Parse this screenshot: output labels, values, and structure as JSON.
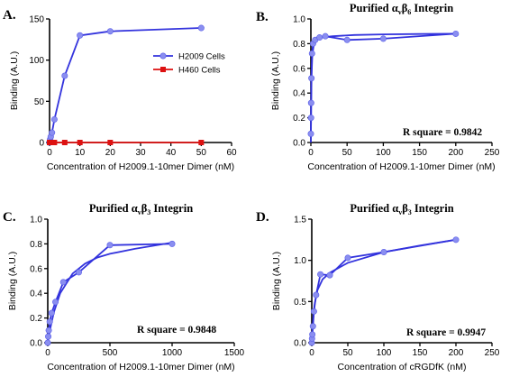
{
  "colors": {
    "blue": "#3333dd",
    "blue_marker": "#8a8ef0",
    "red": "#dd1111",
    "axis": "#000000"
  },
  "chart_data": [
    {
      "panel": "A.",
      "type": "line",
      "title": "",
      "xlabel": "Concentration of H2009.1-10mer Dimer (nM)",
      "ylabel": "Binding (A.U.)",
      "xlim": [
        0,
        60
      ],
      "ylim": [
        0,
        150
      ],
      "xticks": [
        0,
        10,
        20,
        30,
        40,
        50,
        60
      ],
      "yticks": [
        0,
        50,
        100,
        150
      ],
      "legend_position": "upper-right",
      "series": [
        {
          "name": "H2009 Cells",
          "color": "#3333dd",
          "marker": "circle",
          "x": [
            0,
            0.1,
            0.2,
            0.4,
            0.8,
            1.6,
            5,
            10,
            20,
            50
          ],
          "y": [
            0,
            2,
            4,
            7,
            12,
            28,
            81,
            130,
            135,
            139
          ]
        },
        {
          "name": "H460 Cells",
          "color": "#dd1111",
          "marker": "square",
          "x": [
            0,
            0.1,
            0.2,
            0.4,
            0.8,
            1.6,
            5,
            10,
            20,
            50
          ],
          "y": [
            0,
            0,
            0,
            0,
            0,
            0,
            0,
            0,
            0,
            0
          ]
        }
      ]
    },
    {
      "panel": "B.",
      "type": "line",
      "title": "Purified αvβ6 Integrin",
      "title_parts": {
        "pre": "Purified α",
        "sub1": "v",
        "mid": "β",
        "sub2": "6",
        "post": " Integrin"
      },
      "xlabel": "Concentration of H2009.1-10mer Dimer (nM)",
      "ylabel": "Binding (A.U.)",
      "xlim": [
        0,
        250
      ],
      "ylim": [
        0,
        1.0
      ],
      "xticks": [
        0,
        50,
        100,
        150,
        200,
        250
      ],
      "yticks": [
        0,
        0.2,
        0.4,
        0.6,
        0.8,
        1.0
      ],
      "ytick_labels": [
        "0.0",
        "0.2",
        "0.4",
        "0.6",
        "0.8",
        "1.0"
      ],
      "annotation": "R square = 0.9842",
      "series": [
        {
          "name": "",
          "color": "#3333dd",
          "marker": "circle",
          "x": [
            0,
            0.2,
            0.4,
            0.8,
            1.6,
            3,
            6,
            12,
            20,
            50,
            100,
            200
          ],
          "y": [
            0.07,
            0.2,
            0.32,
            0.52,
            0.72,
            0.8,
            0.83,
            0.85,
            0.86,
            0.83,
            0.84,
            0.88
          ]
        }
      ],
      "fit": {
        "x": [
          0,
          0.4,
          1,
          2,
          4,
          8,
          15,
          30,
          60,
          100,
          150,
          200
        ],
        "y": [
          0,
          0.3,
          0.55,
          0.71,
          0.79,
          0.83,
          0.85,
          0.86,
          0.87,
          0.875,
          0.878,
          0.88
        ]
      }
    },
    {
      "panel": "C.",
      "type": "line",
      "title": "Purified αvβ3 Integrin",
      "title_parts": {
        "pre": "Purified α",
        "sub1": "v",
        "mid": "β",
        "sub2": "3",
        "post": " Integrin"
      },
      "xlabel": "Concentration of H2009.1-10mer Dimer (nM)",
      "ylabel": "Binding (A.U.)",
      "xlim": [
        0,
        1500
      ],
      "ylim": [
        0,
        1.0
      ],
      "xticks": [
        0,
        500,
        1000,
        1500
      ],
      "yticks": [
        0,
        0.2,
        0.4,
        0.6,
        0.8,
        1.0
      ],
      "ytick_labels": [
        "0.0",
        "0.2",
        "0.4",
        "0.6",
        "0.8",
        "1.0"
      ],
      "annotation": "R square = 0.9848",
      "series": [
        {
          "name": "",
          "color": "#3333dd",
          "marker": "circle",
          "x": [
            0,
            4,
            8,
            16,
            31,
            62,
            125,
            250,
            500,
            1000
          ],
          "y": [
            0,
            0.05,
            0.1,
            0.17,
            0.24,
            0.33,
            0.49,
            0.57,
            0.79,
            0.8
          ]
        }
      ],
      "fit": {
        "x": [
          0,
          10,
          25,
          50,
          100,
          200,
          300,
          400,
          500,
          700,
          1000
        ],
        "y": [
          0,
          0.06,
          0.14,
          0.25,
          0.4,
          0.56,
          0.64,
          0.69,
          0.72,
          0.76,
          0.81
        ]
      }
    },
    {
      "panel": "D.",
      "type": "line",
      "title": "Purified αvβ3 Integrin",
      "title_parts": {
        "pre": "Purified α",
        "sub1": "v",
        "mid": "β",
        "sub2": "3",
        "post": " Integrin"
      },
      "xlabel": "Concentration of cRGDfK (nM)",
      "ylabel": "Binding (A.U.)",
      "xlim": [
        0,
        250
      ],
      "ylim": [
        0,
        1.5
      ],
      "xticks": [
        0,
        50,
        100,
        150,
        200,
        250
      ],
      "yticks": [
        0,
        0.5,
        1.0,
        1.5
      ],
      "ytick_labels": [
        "0.0",
        "0.5",
        "1.0",
        "1.5"
      ],
      "annotation": "R square = 0.9947",
      "series": [
        {
          "name": "",
          "color": "#8a8ef0",
          "marker": "circle",
          "x": [
            0,
            0.4,
            0.8,
            1.6,
            3,
            6,
            12,
            25,
            50,
            100,
            200
          ],
          "y": [
            0,
            0.05,
            0.1,
            0.2,
            0.38,
            0.58,
            0.83,
            0.82,
            1.03,
            1.1,
            1.25
          ]
        }
      ],
      "fit": {
        "x": [
          0,
          1,
          2,
          4,
          8,
          15,
          25,
          50,
          100,
          150,
          200
        ],
        "y": [
          0,
          0.17,
          0.3,
          0.47,
          0.64,
          0.77,
          0.85,
          0.97,
          1.1,
          1.18,
          1.25
        ]
      }
    }
  ]
}
